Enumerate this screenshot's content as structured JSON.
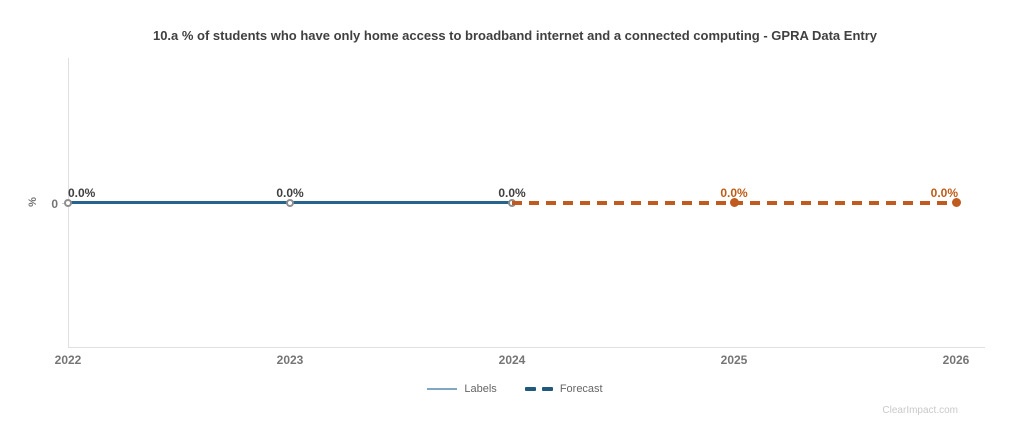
{
  "title": "10.a % of students who have only home access to broadband internet and a connected computing - GPRA Data Entry",
  "watermark": "ClearImpact.com",
  "axes": {
    "y_unit_label": "%",
    "y_zero_label": "0"
  },
  "legend": [
    {
      "label": "Labels",
      "swatch": "solid-line",
      "color": "#7fa8c3"
    },
    {
      "label": "Forecast",
      "swatch": "dashes",
      "color": "#20597c"
    }
  ],
  "colors": {
    "labels_line": "#26648e",
    "forecast_line": "#c05a1f",
    "labels_value_text": "#404040",
    "forecast_value_text": "#bf5b17",
    "open_marker_stroke": "#8f8f8f",
    "axis_line": "#e0e0e0",
    "tick_text": "#757575"
  },
  "chart_data": {
    "type": "line",
    "title": "10.a % of students who have only home access to broadband internet and a connected computing - GPRA Data Entry",
    "xlabel": "",
    "ylabel": "%",
    "ylim": [
      -1,
      1
    ],
    "grid": false,
    "legend_position": "bottom-center",
    "xticks": [
      "2022",
      "2023",
      "2024",
      "2025",
      "2026"
    ],
    "x": [
      2022,
      2023,
      2024,
      2025,
      2026
    ],
    "series": [
      {
        "name": "Labels",
        "x": [
          2022,
          2023,
          2024
        ],
        "values": [
          0,
          0,
          0
        ],
        "point_labels": [
          "0.0%",
          "0.0%",
          "0.0%"
        ],
        "style": "solid",
        "color": "#26648e",
        "marker": "open-circle",
        "label_color": "#404040"
      },
      {
        "name": "Forecast",
        "x": [
          2024,
          2025,
          2026
        ],
        "values": [
          0,
          0,
          0
        ],
        "point_labels": [
          "0.0%",
          "0.0%",
          "0.0%"
        ],
        "style": "dashed",
        "color": "#c05a1f",
        "marker": "filled-circle",
        "label_color": "#bf5b17"
      }
    ]
  }
}
